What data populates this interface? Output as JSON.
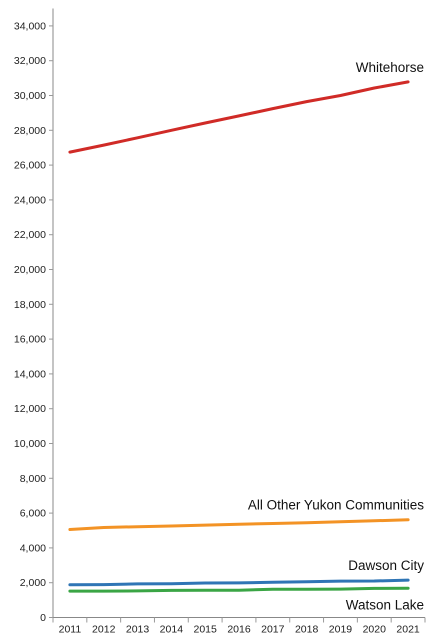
{
  "chart_data": {
    "type": "line",
    "title": "",
    "xlabel": "",
    "ylabel": "",
    "x": [
      "2011",
      "2012",
      "2013",
      "2014",
      "2015",
      "2016",
      "2017",
      "2018",
      "2019",
      "2020",
      "2021"
    ],
    "ylim": [
      0,
      35000
    ],
    "yticks": [
      0,
      2000,
      4000,
      6000,
      8000,
      10000,
      12000,
      14000,
      16000,
      18000,
      20000,
      22000,
      24000,
      26000,
      28000,
      30000,
      32000,
      34000
    ],
    "ytick_labels": [
      "0",
      "2,000",
      "4,000",
      "6,000",
      "8,000",
      "10,000",
      "12,000",
      "14,000",
      "16,000",
      "18,000",
      "20,000",
      "22,000",
      "24,000",
      "26,000",
      "28,000",
      "30,000",
      "32,000",
      "34,000"
    ],
    "grid": false,
    "legend": "direct labels at line ends",
    "series": [
      {
        "name": "Whitehorse",
        "color": "#d02b27",
        "values": [
          26750,
          27150,
          27570,
          28000,
          28420,
          28830,
          29250,
          29650,
          30000,
          30430,
          30780
        ]
      },
      {
        "name": "All Other Yukon Communities",
        "color": "#f39325",
        "values": [
          5060,
          5170,
          5220,
          5260,
          5310,
          5360,
          5400,
          5450,
          5500,
          5560,
          5620
        ]
      },
      {
        "name": "Dawson City",
        "color": "#2f75b5",
        "values": [
          1880,
          1890,
          1930,
          1940,
          1980,
          1990,
          2030,
          2050,
          2090,
          2100,
          2150
        ]
      },
      {
        "name": "Watson Lake",
        "color": "#3aa545",
        "values": [
          1520,
          1520,
          1530,
          1560,
          1570,
          1570,
          1620,
          1620,
          1630,
          1670,
          1680
        ]
      }
    ]
  }
}
